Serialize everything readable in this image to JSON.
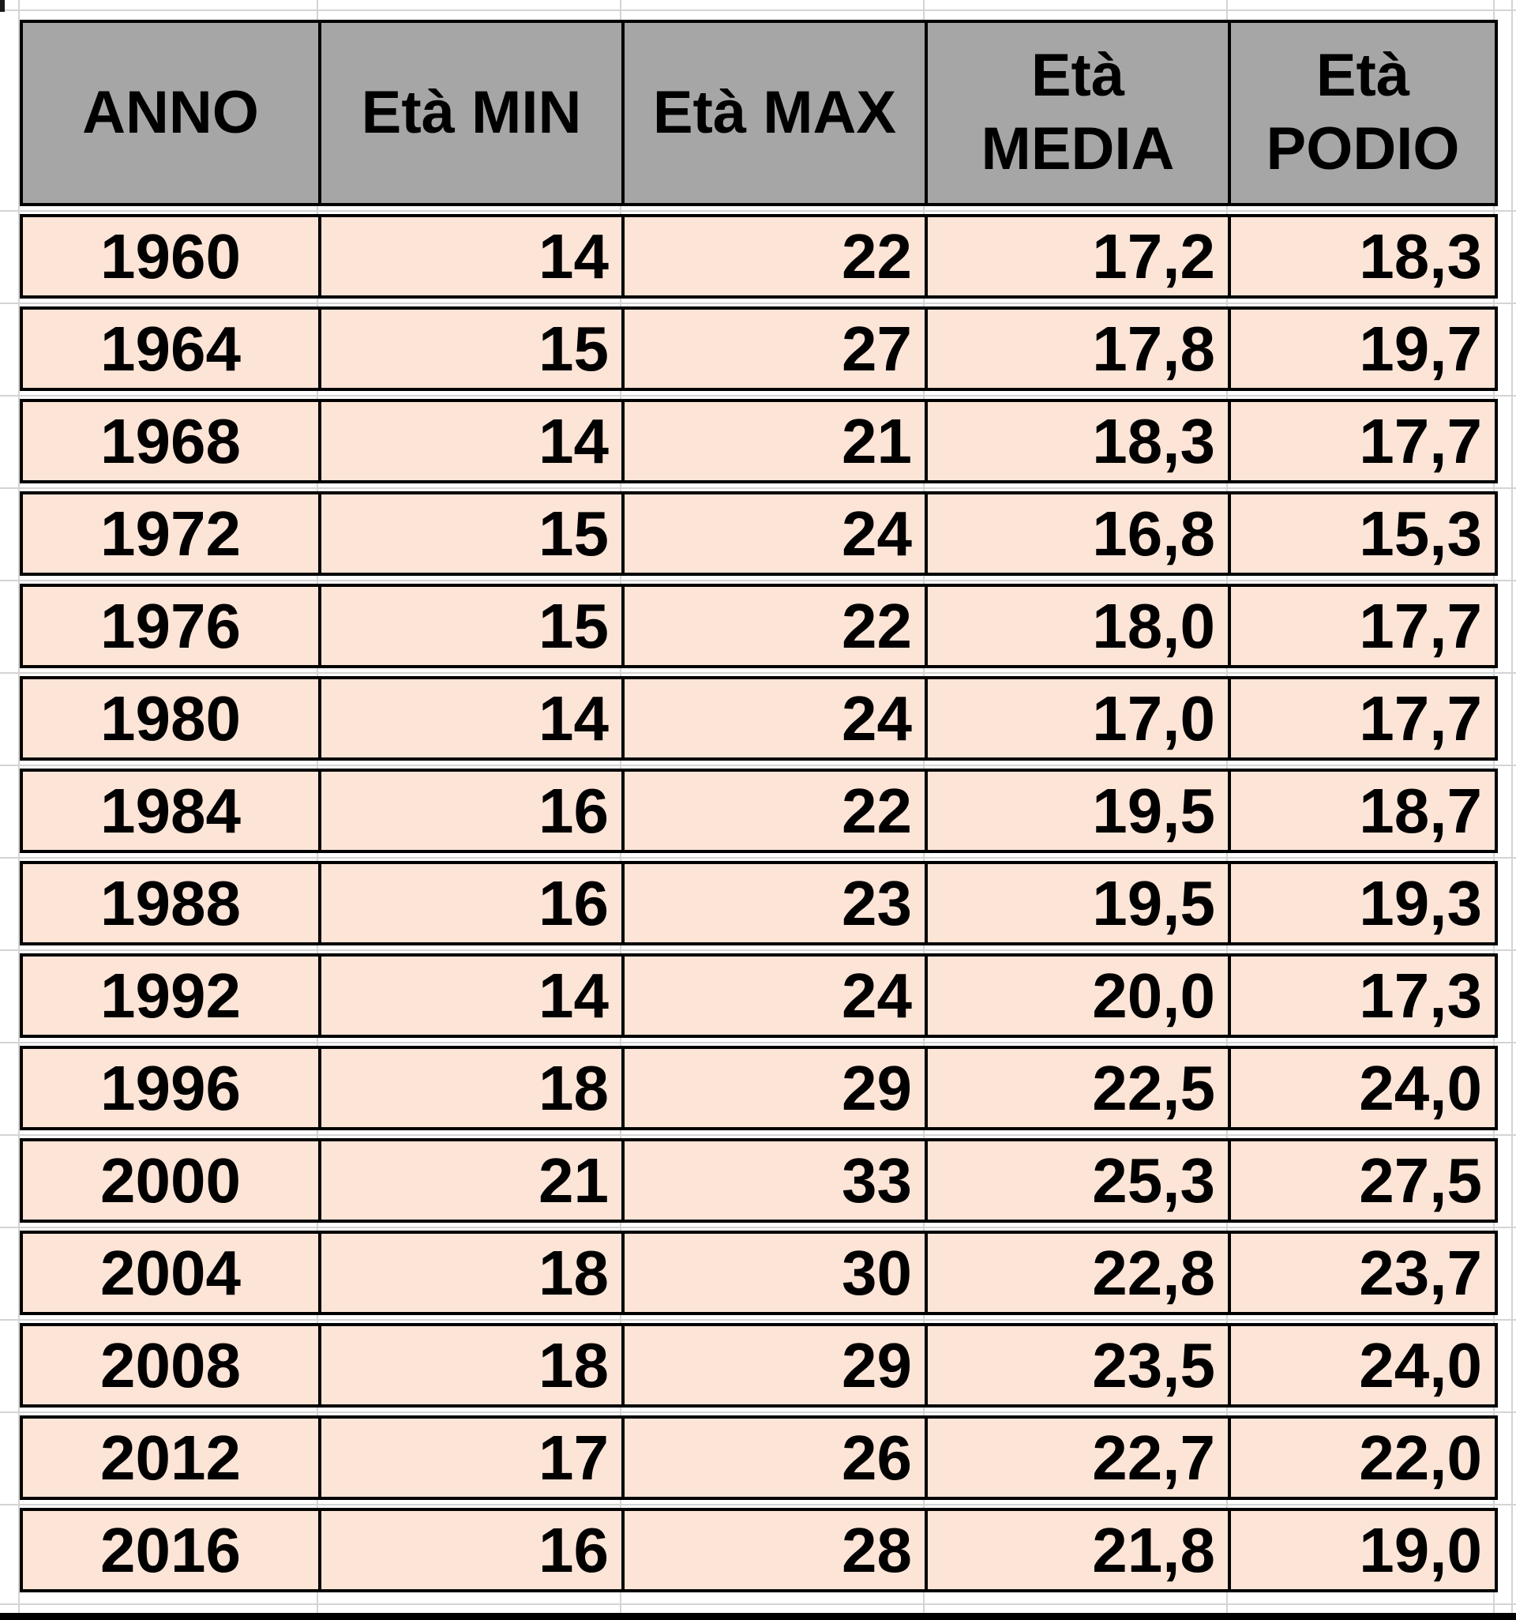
{
  "chart_data": {
    "type": "table",
    "columns": [
      "ANNO",
      "Età MIN",
      "Età MAX",
      "Età MEDIA",
      "Età PODIO"
    ],
    "rows": [
      [
        "1960",
        "14",
        "22",
        "17,2",
        "18,3"
      ],
      [
        "1964",
        "15",
        "27",
        "17,8",
        "19,7"
      ],
      [
        "1968",
        "14",
        "21",
        "18,3",
        "17,7"
      ],
      [
        "1972",
        "15",
        "24",
        "16,8",
        "15,3"
      ],
      [
        "1976",
        "15",
        "22",
        "18,0",
        "17,7"
      ],
      [
        "1980",
        "14",
        "24",
        "17,0",
        "17,7"
      ],
      [
        "1984",
        "16",
        "22",
        "19,5",
        "18,7"
      ],
      [
        "1988",
        "16",
        "23",
        "19,5",
        "19,3"
      ],
      [
        "1992",
        "14",
        "24",
        "20,0",
        "17,3"
      ],
      [
        "1996",
        "18",
        "29",
        "22,5",
        "24,0"
      ],
      [
        "2000",
        "21",
        "33",
        "25,3",
        "27,5"
      ],
      [
        "2004",
        "18",
        "30",
        "22,8",
        "23,7"
      ],
      [
        "2008",
        "18",
        "29",
        "23,5",
        "24,0"
      ],
      [
        "2012",
        "17",
        "26",
        "22,7",
        "22,0"
      ],
      [
        "2016",
        "16",
        "28",
        "21,8",
        "19,0"
      ]
    ]
  },
  "colors": {
    "header_bg": "#a6a6a6",
    "row_bg": "#fce4d6",
    "table_border": "#000000",
    "gridline": "#d4d4d4",
    "text": "#000000",
    "background": "#ffffff",
    "bottom_bar": "#000000"
  }
}
